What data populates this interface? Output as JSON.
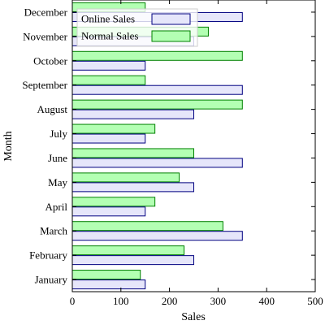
{
  "chart_data": {
    "type": "bar",
    "orientation": "horizontal",
    "title": "",
    "xlabel": "Sales",
    "ylabel": "Month",
    "xlim": [
      0,
      500
    ],
    "xticks": [
      0,
      100,
      200,
      300,
      400,
      500
    ],
    "grid": false,
    "legend": {
      "placement": "top-left"
    },
    "categories": [
      "January",
      "February",
      "March",
      "April",
      "May",
      "June",
      "July",
      "August",
      "September",
      "October",
      "November",
      "December"
    ],
    "series": [
      {
        "name": "Online Sales",
        "values": [
          150,
          250,
          350,
          150,
          250,
          350,
          150,
          250,
          350,
          150,
          250,
          350
        ],
        "fill": "#e6e6fa",
        "stroke": "#000080"
      },
      {
        "name": "Normal Sales",
        "values": [
          140,
          230,
          310,
          170,
          220,
          250,
          170,
          350,
          150,
          350,
          280,
          150
        ],
        "fill": "#b3ffb3",
        "stroke": "#008000"
      }
    ]
  }
}
